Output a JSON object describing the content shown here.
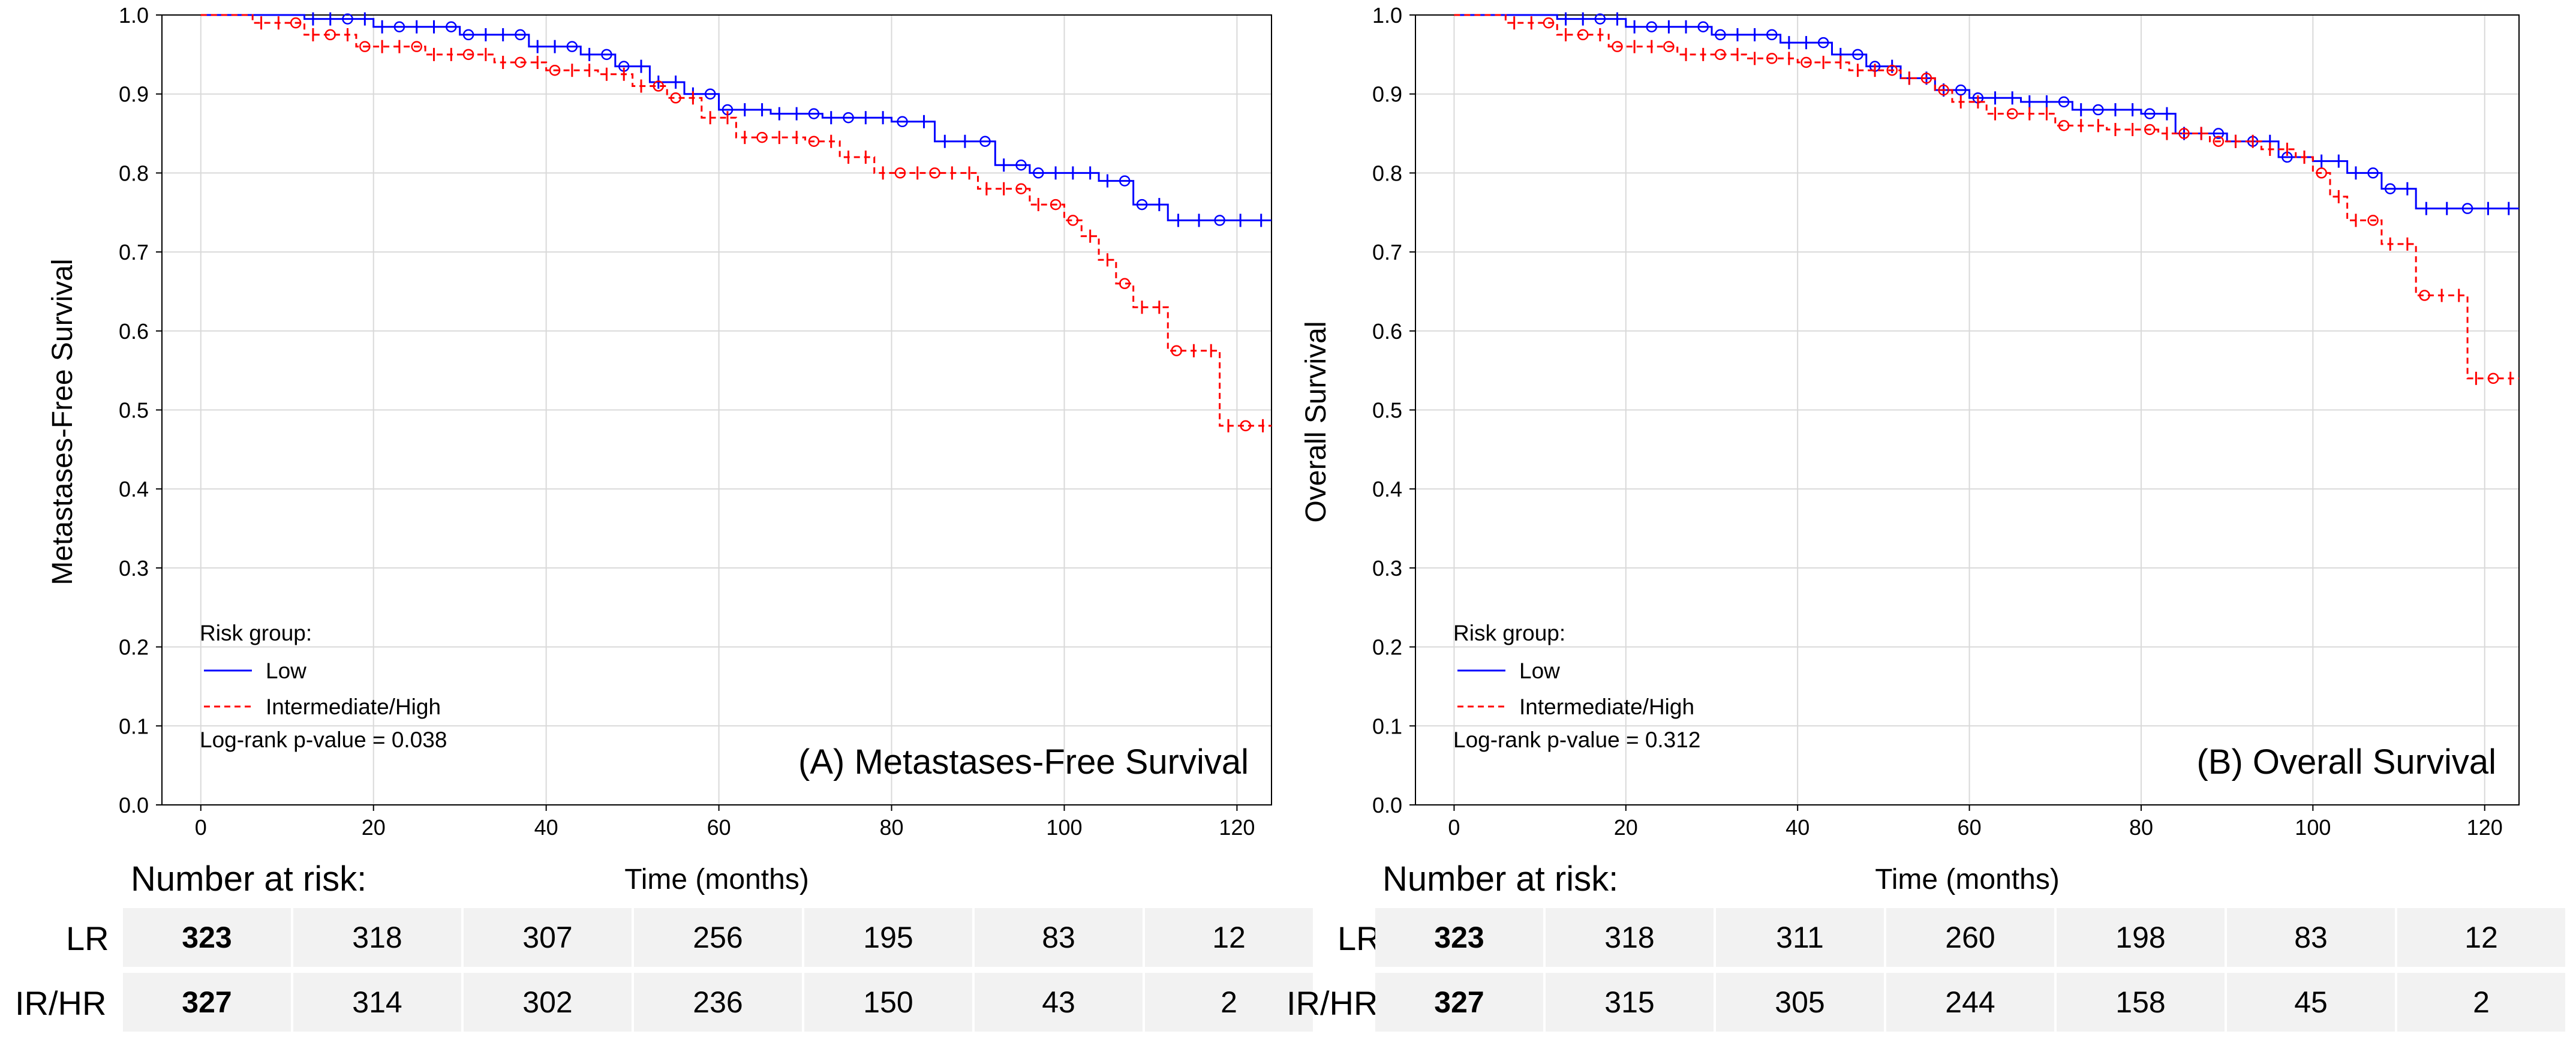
{
  "chart_data": [
    {
      "type": "line",
      "subtype": "kaplan-meier",
      "title": "(A) Metastases-Free Survival",
      "xlabel": "Time (months)",
      "ylabel": "Metastases-Free Survival",
      "xlim": [
        0,
        120
      ],
      "ylim": [
        0,
        1
      ],
      "x_ticks": [
        "0",
        "20",
        "40",
        "60",
        "80",
        "100",
        "120"
      ],
      "y_ticks": [
        "0.0",
        "0.1",
        "0.2",
        "0.3",
        "0.4",
        "0.5",
        "0.6",
        "0.7",
        "0.8",
        "0.9",
        "1.0"
      ],
      "legend_title": "Risk group:",
      "pvalue_text": "Log-rank p-value = 0.038",
      "series": [
        {
          "name": "Low",
          "color": "#0000ff",
          "dash": "solid",
          "x": [
            0,
            12,
            20,
            30,
            38,
            44,
            48,
            52,
            56,
            60,
            66,
            72,
            80,
            85,
            92,
            96,
            100,
            104,
            108,
            112,
            124
          ],
          "y": [
            1.0,
            0.995,
            0.985,
            0.975,
            0.96,
            0.95,
            0.935,
            0.915,
            0.9,
            0.88,
            0.875,
            0.87,
            0.865,
            0.84,
            0.81,
            0.8,
            0.8,
            0.79,
            0.76,
            0.74,
            0.74
          ]
        },
        {
          "name": "Intermediate/High",
          "color": "#ff0000",
          "dash": "dashed",
          "x": [
            0,
            6,
            12,
            18,
            26,
            34,
            40,
            46,
            50,
            54,
            58,
            62,
            70,
            74,
            78,
            84,
            90,
            96,
            100,
            102,
            104,
            106,
            108,
            110,
            112,
            116,
            118,
            124
          ],
          "y": [
            1.0,
            0.99,
            0.975,
            0.96,
            0.95,
            0.94,
            0.93,
            0.925,
            0.91,
            0.895,
            0.87,
            0.845,
            0.84,
            0.82,
            0.8,
            0.8,
            0.78,
            0.76,
            0.74,
            0.72,
            0.69,
            0.66,
            0.63,
            0.63,
            0.575,
            0.575,
            0.48,
            0.48
          ]
        }
      ],
      "risk_table": {
        "title": "Number at risk:",
        "rows": [
          {
            "label": "LR",
            "values": [
              "323",
              "318",
              "307",
              "256",
              "195",
              "83",
              "12"
            ]
          },
          {
            "label": "IR/HR",
            "values": [
              "327",
              "314",
              "302",
              "236",
              "150",
              "43",
              "2"
            ]
          }
        ]
      }
    },
    {
      "type": "line",
      "subtype": "kaplan-meier",
      "title": "(B) Overall Survival",
      "xlabel": "Time (months)",
      "ylabel": "Overall Survival",
      "xlim": [
        0,
        120
      ],
      "ylim": [
        0,
        1
      ],
      "x_ticks": [
        "0",
        "20",
        "40",
        "60",
        "80",
        "100",
        "120"
      ],
      "y_ticks": [
        "0.0",
        "0.1",
        "0.2",
        "0.3",
        "0.4",
        "0.5",
        "0.6",
        "0.7",
        "0.8",
        "0.9",
        "1.0"
      ],
      "legend_title": "Risk group:",
      "pvalue_text": "Log-rank p-value = 0.312",
      "series": [
        {
          "name": "Low",
          "color": "#0000ff",
          "dash": "solid",
          "x": [
            0,
            12,
            20,
            30,
            38,
            44,
            48,
            52,
            56,
            60,
            66,
            72,
            80,
            84,
            90,
            96,
            100,
            104,
            108,
            112,
            124
          ],
          "y": [
            1.0,
            0.995,
            0.985,
            0.975,
            0.965,
            0.95,
            0.935,
            0.92,
            0.905,
            0.895,
            0.89,
            0.88,
            0.875,
            0.85,
            0.84,
            0.82,
            0.815,
            0.8,
            0.78,
            0.755,
            0.755
          ]
        },
        {
          "name": "Intermediate/High",
          "color": "#ff0000",
          "dash": "dashed",
          "x": [
            0,
            6,
            12,
            18,
            26,
            34,
            40,
            46,
            52,
            56,
            58,
            62,
            70,
            76,
            82,
            88,
            94,
            98,
            100,
            102,
            104,
            106,
            108,
            110,
            112,
            116,
            118,
            124
          ],
          "y": [
            1.0,
            0.99,
            0.975,
            0.96,
            0.95,
            0.945,
            0.94,
            0.93,
            0.92,
            0.905,
            0.89,
            0.875,
            0.86,
            0.855,
            0.85,
            0.84,
            0.83,
            0.82,
            0.8,
            0.77,
            0.74,
            0.74,
            0.71,
            0.71,
            0.645,
            0.645,
            0.54,
            0.54
          ]
        }
      ],
      "risk_table": {
        "title": "Number at risk:",
        "rows": [
          {
            "label": "LR",
            "values": [
              "323",
              "318",
              "311",
              "260",
              "198",
              "83",
              "12"
            ]
          },
          {
            "label": "IR/HR",
            "values": [
              "327",
              "315",
              "305",
              "244",
              "158",
              "45",
              "2"
            ]
          }
        ]
      }
    }
  ]
}
